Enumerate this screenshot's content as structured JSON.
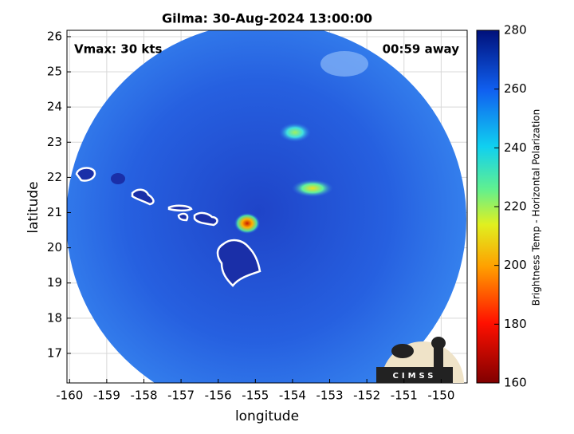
{
  "chart_data": {
    "type": "map",
    "title": "Gilma: 30-Aug-2024 13:00:00",
    "annotations": [
      "Vmax: 30 kts",
      "00:59 away"
    ],
    "x_label": "longitude",
    "y_label": "latitude",
    "xlim": [
      -160.07,
      -149.3
    ],
    "ylim": [
      16.16,
      26.18
    ],
    "xticks": [
      -160,
      -159,
      -158,
      -157,
      -156,
      -155,
      -154,
      -153,
      -152,
      -151,
      -150
    ],
    "yticks": [
      17,
      18,
      19,
      20,
      21,
      22,
      23,
      24,
      25,
      26
    ],
    "grid": true,
    "colorbar": {
      "label": "Brightness Temp - Horizontal Polarization",
      "lim": [
        160,
        280
      ],
      "ticks": [
        160,
        180,
        200,
        220,
        240,
        260,
        280
      ]
    }
  },
  "logo": "CIMSS"
}
